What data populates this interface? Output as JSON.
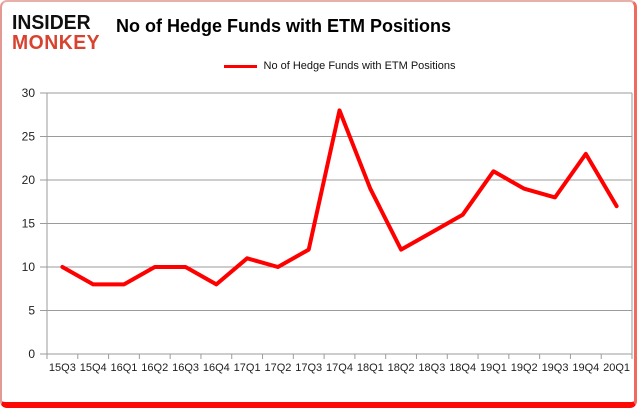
{
  "logo": {
    "line1": "INSIDER",
    "line2": "MONKEY",
    "accent_color": "#d7432e"
  },
  "header": {
    "title": "No of Hedge Funds with ETM Positions"
  },
  "legend": {
    "label": "No of Hedge Funds with ETM Positions"
  },
  "chart_data": {
    "type": "line",
    "title": "No of Hedge Funds with ETM Positions",
    "series_name": "No of Hedge Funds with ETM Positions",
    "categories": [
      "15Q3",
      "15Q4",
      "16Q1",
      "16Q2",
      "16Q3",
      "16Q4",
      "17Q1",
      "17Q2",
      "17Q3",
      "17Q4",
      "18Q1",
      "18Q2",
      "18Q3",
      "18Q4",
      "19Q1",
      "19Q2",
      "19Q3",
      "19Q4",
      "20Q1"
    ],
    "values": [
      10,
      8,
      8,
      10,
      10,
      8,
      11,
      10,
      12,
      28,
      19,
      12,
      14,
      16,
      21,
      19,
      18,
      23,
      17
    ],
    "ylim": [
      0,
      30
    ],
    "ytick_step": 5,
    "yticks": [
      0,
      5,
      10,
      15,
      20,
      25,
      30
    ],
    "grid": true,
    "legend_position": "top-center",
    "line_color": "#ff0000",
    "grid_color": "#9b9b9b",
    "tick_label_color": "#1f1f1f"
  }
}
